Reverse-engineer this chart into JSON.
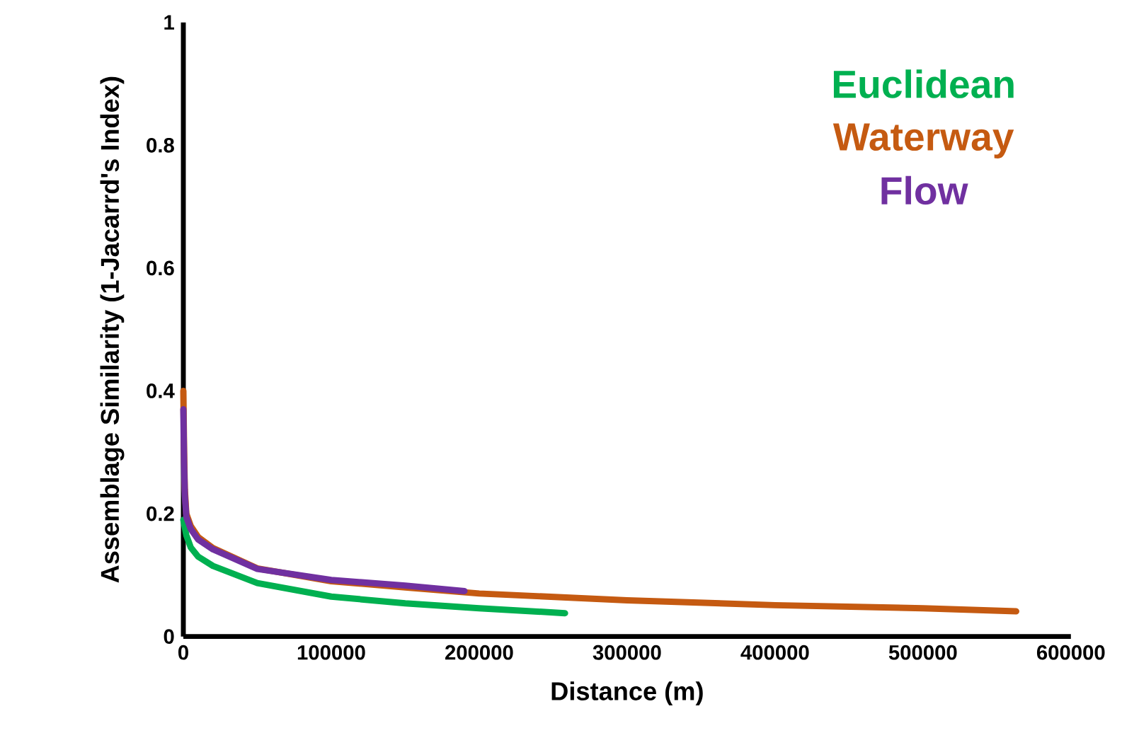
{
  "chart_data": {
    "type": "line",
    "xlabel": "Distance (m)",
    "ylabel": "Assemblage Similarity (1-Jacarrd's Index)",
    "xlim": [
      0,
      600000
    ],
    "ylim": [
      0,
      1
    ],
    "xticks": [
      0,
      100000,
      200000,
      300000,
      400000,
      500000,
      600000
    ],
    "yticks": [
      0,
      0.2,
      0.4,
      0.6,
      0.8,
      1
    ],
    "grid": false,
    "legend": "top right",
    "marker": "none",
    "line_style": "solid",
    "series": [
      {
        "name": "Euclidean",
        "color": "#00b050",
        "x": [
          0,
          2000,
          5000,
          10000,
          20000,
          50000,
          100000,
          150000,
          200000,
          258000
        ],
        "values": [
          0.19,
          0.165,
          0.145,
          0.13,
          0.115,
          0.087,
          0.065,
          0.054,
          0.046,
          0.038
        ]
      },
      {
        "name": "Waterway",
        "color": "#c55a11",
        "x": [
          0,
          500,
          1000,
          2000,
          5000,
          10000,
          20000,
          50000,
          100000,
          150000,
          200000,
          300000,
          400000,
          500000,
          563000
        ],
        "values": [
          0.4,
          0.3,
          0.24,
          0.2,
          0.18,
          0.162,
          0.144,
          0.111,
          0.09,
          0.08,
          0.07,
          0.059,
          0.051,
          0.046,
          0.041
        ]
      },
      {
        "name": "Flow",
        "color": "#7030a0",
        "x": [
          0,
          500,
          1000,
          2000,
          5000,
          10000,
          20000,
          50000,
          100000,
          150000,
          190000
        ],
        "values": [
          0.37,
          0.28,
          0.23,
          0.195,
          0.175,
          0.158,
          0.142,
          0.11,
          0.092,
          0.083,
          0.074
        ]
      }
    ]
  }
}
